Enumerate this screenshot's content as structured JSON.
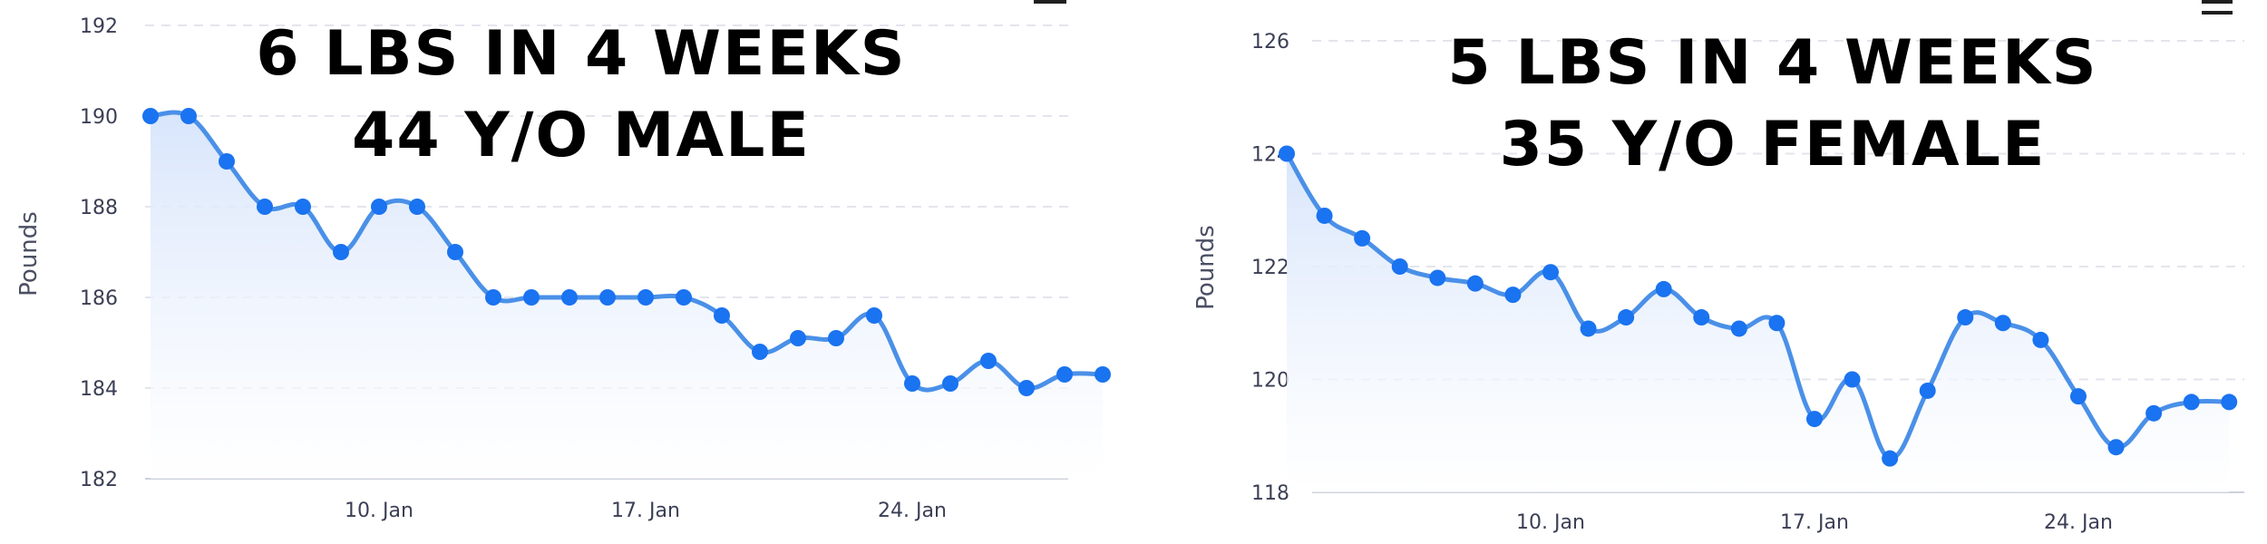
{
  "chart_data": [
    {
      "type": "area",
      "title": "",
      "annotation": [
        "6 LBS IN 4 WEEKS",
        "44 Y/O MALE"
      ],
      "ylabel": "Pounds",
      "xlabel": "",
      "ylim": [
        182,
        192
      ],
      "yticks": [
        182,
        184,
        186,
        188,
        190,
        192
      ],
      "x_ticks": [
        {
          "day": 10,
          "label": "10. Jan"
        },
        {
          "day": 17,
          "label": "17. Jan"
        },
        {
          "day": 24,
          "label": "24. Jan"
        }
      ],
      "x": [
        4,
        5,
        6,
        7,
        8,
        9,
        10,
        11,
        12,
        13,
        14,
        15,
        16,
        17,
        18,
        19,
        20,
        21,
        22,
        23,
        24,
        25,
        26,
        27,
        28,
        29
      ],
      "values": [
        190,
        190,
        189,
        188,
        188,
        187,
        188,
        188,
        187,
        186,
        186,
        186,
        186,
        186,
        186,
        185.6,
        184.8,
        185.1,
        185.1,
        185.6,
        184.1,
        184.1,
        184.6,
        184.0,
        184.3,
        184.3
      ],
      "grid": true,
      "legend": "none",
      "colors": {
        "line": "#4a90e8",
        "marker": "#1a73f0",
        "fill": "#dce8fb"
      }
    },
    {
      "type": "area",
      "title": "",
      "annotation": [
        "5 LBS IN 4 WEEKS",
        "35 Y/O FEMALE"
      ],
      "ylabel": "Pounds",
      "xlabel": "",
      "ylim": [
        118,
        126
      ],
      "yticks": [
        118,
        120,
        122,
        124,
        126
      ],
      "x_ticks": [
        {
          "day": 10,
          "label": "10. Jan"
        },
        {
          "day": 17,
          "label": "17. Jan"
        },
        {
          "day": 24,
          "label": "24. Jan"
        }
      ],
      "x": [
        3,
        4,
        5,
        6,
        7,
        8,
        9,
        10,
        11,
        12,
        13,
        14,
        15,
        16,
        17,
        18,
        19,
        20,
        21,
        22,
        23,
        24,
        25,
        26,
        27,
        28
      ],
      "values": [
        124.0,
        122.9,
        122.5,
        122.0,
        121.8,
        121.7,
        121.5,
        121.9,
        120.9,
        121.1,
        121.6,
        121.1,
        120.9,
        121.0,
        119.3,
        120.0,
        118.6,
        119.8,
        121.1,
        121.0,
        120.7,
        119.7,
        118.8,
        119.4,
        119.6,
        119.6
      ],
      "grid": true,
      "legend": "none",
      "colors": {
        "line": "#4a90e8",
        "marker": "#1a73f0",
        "fill": "#dce8fb"
      }
    }
  ]
}
